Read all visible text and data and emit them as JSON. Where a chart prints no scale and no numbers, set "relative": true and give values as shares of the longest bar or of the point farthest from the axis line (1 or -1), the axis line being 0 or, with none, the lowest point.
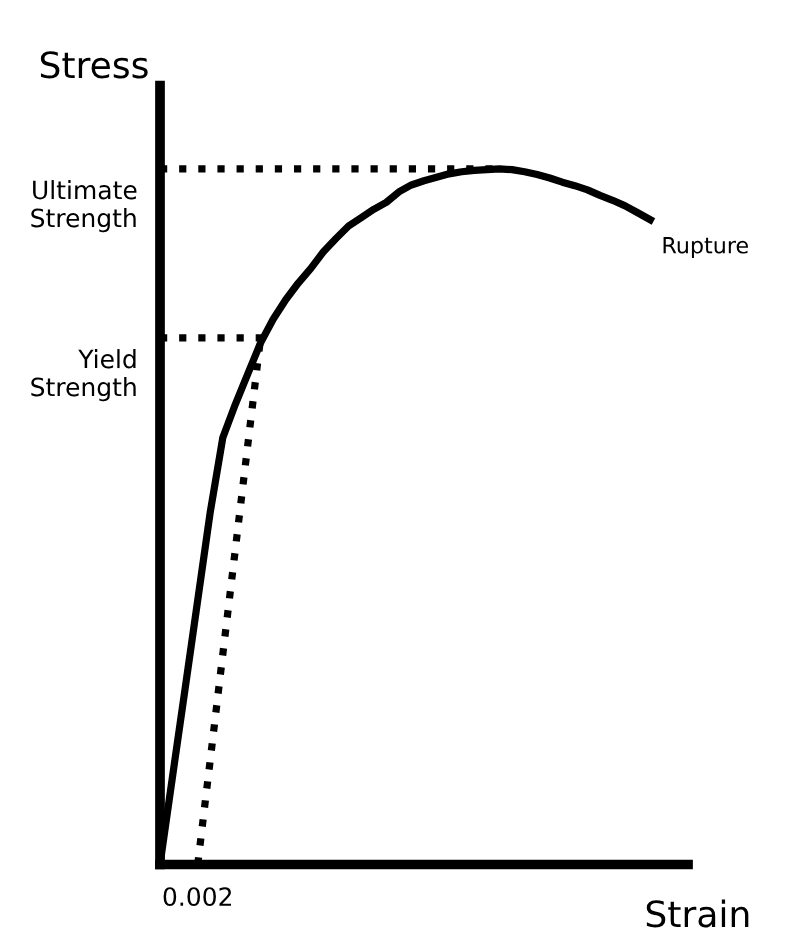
{
  "chart_data": {
    "type": "line",
    "relative": true,
    "xlabel": "Strain",
    "ylabel": "Stress",
    "marker": "none",
    "categories": [
      null,
      null,
      null,
      null,
      null,
      null,
      null,
      null,
      null,
      null,
      null,
      null,
      null,
      null,
      null,
      null,
      null,
      null,
      null,
      null,
      null,
      null,
      null,
      null,
      null,
      null,
      null,
      null,
      null,
      null,
      null,
      null,
      null,
      null,
      null,
      null,
      null,
      null,
      null,
      null,
      null,
      null,
      null
    ],
    "series": [
      {
        "line_style": "solid",
        "color": "#000000",
        "values": [
          0,
          0.127,
          0.253,
          0.38,
          0.507,
          0.614,
          0.662,
          0.706,
          0.75,
          0.784,
          0.812,
          0.836,
          0.857,
          0.881,
          0.9,
          0.918,
          0.93,
          0.942,
          0.952,
          0.967,
          0.977,
          0.983,
          0.988,
          0.993,
          0.996,
          0.998,
          0.999,
          1,
          0.999,
          0.996,
          0.992,
          0.987,
          0.981,
          0.976,
          0.97,
          0.962,
          0.955,
          0.947,
          0.937,
          0.927,
          null,
          null,
          null
        ]
      },
      {
        "line_style": "dotted",
        "color": "#000000",
        "values": [
          null,
          null,
          null,
          0,
          0.151,
          0.303,
          0.454,
          0.606,
          0.757,
          null,
          null,
          null,
          null,
          null,
          null,
          null,
          null,
          null,
          null,
          null,
          null,
          null,
          null,
          null,
          null,
          null,
          null,
          null,
          null,
          null,
          null,
          null,
          null,
          null,
          null,
          null,
          null,
          null,
          null,
          null,
          null,
          null,
          null
        ]
      }
    ],
    "ref_lines": [
      {
        "axis": "y",
        "value": 1,
        "label": "Ultimate\nStrength",
        "line_style": "dotted",
        "color": "#000000"
      },
      {
        "axis": "y",
        "value": 0.757,
        "label": "Yield\nStrength",
        "line_style": "dotted",
        "color": "#000000"
      }
    ],
    "annotations": [
      "Rupture",
      {
        "text": "0.002",
        "y": 0
      }
    ]
  }
}
